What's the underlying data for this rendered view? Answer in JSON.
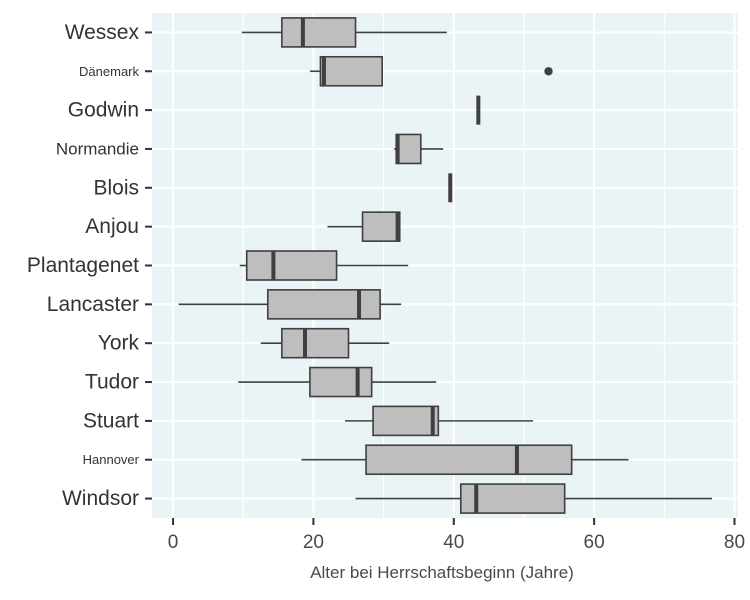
{
  "chart_data": {
    "type": "boxplot",
    "orientation": "horizontal",
    "xlabel": "Alter bei Herrschaftsbeginn (Jahre)",
    "ylabel": "",
    "xlim": [
      -3,
      80.5
    ],
    "xticks": [
      0,
      20,
      40,
      60,
      80
    ],
    "grid": true,
    "panel_color": "#EAF3F6",
    "box_fill": "#BEBEBE",
    "line_color": "#3F3F3F",
    "categories": [
      "Wessex",
      "Dänemark",
      "Godwin",
      "Normandie",
      "Blois",
      "Anjou",
      "Plantagenet",
      "Lancaster",
      "York",
      "Tudor",
      "Stuart",
      "Hannover",
      "Windsor"
    ],
    "boxes": [
      {
        "label": "Wessex",
        "whisker_low": 9.8,
        "q1": 15.5,
        "median": 18.5,
        "q3": 26.0,
        "whisker_high": 39.0,
        "outliers": []
      },
      {
        "label": "Dänemark",
        "whisker_low": 19.5,
        "q1": 21.0,
        "median": 21.5,
        "q3": 29.8,
        "whisker_high": 29.8,
        "outliers": [
          53.5
        ]
      },
      {
        "label": "Godwin",
        "whisker_low": 43.5,
        "q1": 43.5,
        "median": 43.5,
        "q3": 43.5,
        "whisker_high": 43.5,
        "outliers": []
      },
      {
        "label": "Normandie",
        "whisker_low": 31.5,
        "q1": 31.8,
        "median": 32.0,
        "q3": 35.3,
        "whisker_high": 38.5,
        "outliers": []
      },
      {
        "label": "Blois",
        "whisker_low": 39.5,
        "q1": 39.5,
        "median": 39.5,
        "q3": 39.5,
        "whisker_high": 39.5,
        "outliers": []
      },
      {
        "label": "Anjou",
        "whisker_low": 22.0,
        "q1": 27.0,
        "median": 32.0,
        "q3": 32.3,
        "whisker_high": 32.3,
        "outliers": []
      },
      {
        "label": "Plantagenet",
        "whisker_low": 9.5,
        "q1": 10.5,
        "median": 14.3,
        "q3": 23.3,
        "whisker_high": 33.5,
        "outliers": []
      },
      {
        "label": "Lancaster",
        "whisker_low": 0.8,
        "q1": 13.5,
        "median": 26.5,
        "q3": 29.5,
        "whisker_high": 32.5,
        "outliers": []
      },
      {
        "label": "York",
        "whisker_low": 12.5,
        "q1": 15.5,
        "median": 18.8,
        "q3": 25.0,
        "whisker_high": 30.8,
        "outliers": []
      },
      {
        "label": "Tudor",
        "whisker_low": 9.3,
        "q1": 19.5,
        "median": 26.3,
        "q3": 28.3,
        "whisker_high": 37.5,
        "outliers": []
      },
      {
        "label": "Stuart",
        "whisker_low": 24.5,
        "q1": 28.5,
        "median": 37.0,
        "q3": 37.8,
        "whisker_high": 51.3,
        "outliers": []
      },
      {
        "label": "Hannover",
        "whisker_low": 18.3,
        "q1": 27.5,
        "median": 49.0,
        "q3": 56.8,
        "whisker_high": 64.9,
        "outliers": []
      },
      {
        "label": "Windsor",
        "whisker_low": 26.0,
        "q1": 41.0,
        "median": 43.2,
        "q3": 55.8,
        "whisker_high": 76.8,
        "outliers": []
      }
    ]
  }
}
